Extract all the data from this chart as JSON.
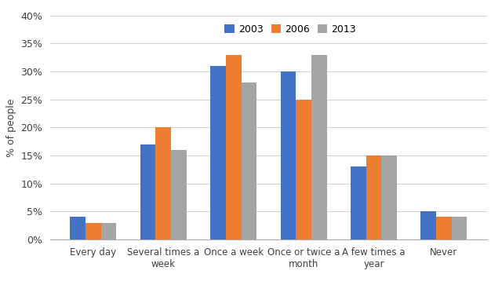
{
  "categories": [
    "Every day",
    "Several times a\nweek",
    "Once a week",
    "Once or twice a\nmonth",
    "A few times a\nyear",
    "Never"
  ],
  "series": {
    "2003": [
      4,
      17,
      31,
      30,
      13,
      5
    ],
    "2006": [
      3,
      20,
      33,
      25,
      15,
      4
    ],
    "2013": [
      3,
      16,
      28,
      33,
      15,
      4
    ]
  },
  "colors": {
    "2003": "#4472C4",
    "2006": "#ED7D31",
    "2013": "#A5A5A5"
  },
  "ylabel": "% of people",
  "ylim": [
    0,
    40
  ],
  "yticks": [
    0,
    5,
    10,
    15,
    20,
    25,
    30,
    35,
    40
  ],
  "ytick_labels": [
    "0%",
    "5%",
    "10%",
    "15%",
    "20%",
    "25%",
    "30%",
    "35%",
    "40%"
  ],
  "legend_labels": [
    "2003",
    "2006",
    "2013"
  ],
  "bar_width": 0.22,
  "background_color": "#FFFFFF",
  "grid_color": "#D3D3D3"
}
